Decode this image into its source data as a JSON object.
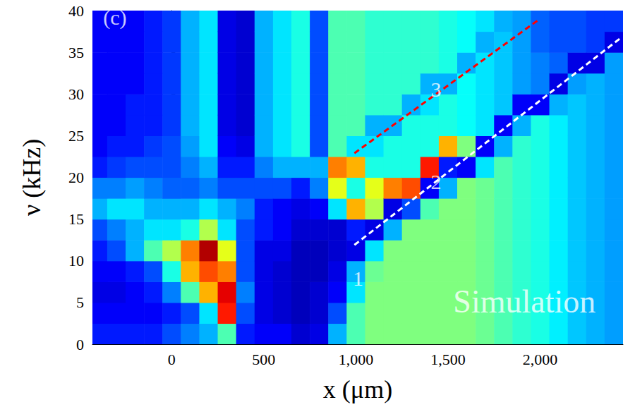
{
  "chart_data": {
    "type": "heatmap",
    "x_label": "x (μm)",
    "y_label": "ν (kHz)",
    "xlim": [
      -430,
      2450
    ],
    "ylim": [
      0,
      40
    ],
    "xticks": [
      0,
      500,
      1000,
      1500,
      2000
    ],
    "yticks": [
      0,
      5,
      10,
      15,
      20,
      25,
      30,
      35,
      40
    ],
    "grid": false,
    "x": [
      -400,
      -300,
      -200,
      -100,
      0,
      100,
      200,
      300,
      400,
      500,
      600,
      700,
      800,
      900,
      1000,
      1100,
      1200,
      1300,
      1400,
      1500,
      1600,
      1700,
      1800,
      1900,
      2000,
      2100,
      2200,
      2300,
      2400
    ],
    "y": [
      1.25,
      3.75,
      6.25,
      8.75,
      11.25,
      13.75,
      16.25,
      18.75,
      21.25,
      23.75,
      26.25,
      28.75,
      31.25,
      33.75,
      36.25,
      38.75
    ],
    "value_range": [
      0,
      1
    ],
    "cells": [
      [
        0.15,
        0.12,
        0.1,
        0.12,
        0.15,
        0.2,
        0.3,
        0.25,
        0.15,
        0.12,
        0.12,
        0.12,
        0.12,
        0.12,
        0.12,
        0.12
      ],
      [
        0.15,
        0.12,
        0.1,
        0.12,
        0.2,
        0.25,
        0.35,
        0.25,
        0.18,
        0.15,
        0.12,
        0.12,
        0.12,
        0.12,
        0.12,
        0.12
      ],
      [
        0.15,
        0.12,
        0.12,
        0.15,
        0.3,
        0.3,
        0.35,
        0.28,
        0.2,
        0.15,
        0.15,
        0.15,
        0.12,
        0.12,
        0.12,
        0.12
      ],
      [
        0.15,
        0.12,
        0.15,
        0.2,
        0.45,
        0.35,
        0.3,
        0.25,
        0.2,
        0.18,
        0.15,
        0.15,
        0.15,
        0.15,
        0.15,
        0.15
      ],
      [
        0.2,
        0.15,
        0.25,
        0.4,
        0.55,
        0.35,
        0.3,
        0.22,
        0.2,
        0.2,
        0.18,
        0.18,
        0.18,
        0.18,
        0.18,
        0.18
      ],
      [
        0.25,
        0.2,
        0.45,
        0.7,
        0.75,
        0.4,
        0.3,
        0.22,
        0.25,
        0.28,
        0.3,
        0.3,
        0.3,
        0.3,
        0.3,
        0.3
      ],
      [
        0.3,
        0.35,
        0.7,
        0.8,
        0.95,
        0.55,
        0.35,
        0.25,
        0.3,
        0.35,
        0.35,
        0.35,
        0.35,
        0.35,
        0.35,
        0.35
      ],
      [
        0.45,
        0.85,
        0.9,
        0.75,
        0.6,
        0.35,
        0.3,
        0.2,
        0.15,
        0.12,
        0.1,
        0.1,
        0.1,
        0.1,
        0.1,
        0.1
      ],
      [
        0.15,
        0.2,
        0.25,
        0.2,
        0.2,
        0.2,
        0.25,
        0.2,
        0.15,
        0.1,
        0.08,
        0.08,
        0.08,
        0.08,
        0.08,
        0.08
      ],
      [
        0.12,
        0.1,
        0.1,
        0.1,
        0.1,
        0.15,
        0.15,
        0.2,
        0.25,
        0.3,
        0.3,
        0.3,
        0.3,
        0.3,
        0.3,
        0.3
      ],
      [
        0.12,
        0.08,
        0.08,
        0.08,
        0.1,
        0.12,
        0.12,
        0.2,
        0.3,
        0.35,
        0.35,
        0.35,
        0.35,
        0.35,
        0.35,
        0.35
      ],
      [
        0.08,
        0.06,
        0.06,
        0.06,
        0.06,
        0.08,
        0.1,
        0.15,
        0.3,
        0.4,
        0.4,
        0.4,
        0.4,
        0.4,
        0.4,
        0.4
      ],
      [
        0.1,
        0.08,
        0.08,
        0.06,
        0.06,
        0.08,
        0.12,
        0.25,
        0.3,
        0.2,
        0.2,
        0.2,
        0.2,
        0.2,
        0.2,
        0.2
      ],
      [
        0.3,
        0.2,
        0.12,
        0.1,
        0.08,
        0.08,
        0.35,
        0.6,
        0.75,
        0.45,
        0.45,
        0.45,
        0.45,
        0.45,
        0.45,
        0.45
      ],
      [
        0.45,
        0.45,
        0.35,
        0.3,
        0.1,
        0.15,
        0.7,
        0.4,
        0.7,
        0.35,
        0.45,
        0.45,
        0.45,
        0.45,
        0.45,
        0.45
      ],
      [
        0.5,
        0.5,
        0.5,
        0.48,
        0.35,
        0.1,
        0.55,
        0.6,
        0.4,
        0.35,
        0.3,
        0.42,
        0.42,
        0.42,
        0.42,
        0.42
      ],
      [
        0.5,
        0.5,
        0.5,
        0.5,
        0.5,
        0.3,
        0.1,
        0.75,
        0.4,
        0.4,
        0.3,
        0.42,
        0.42,
        0.42,
        0.42,
        0.42
      ],
      [
        0.5,
        0.5,
        0.5,
        0.5,
        0.5,
        0.5,
        0.2,
        0.8,
        0.4,
        0.4,
        0.4,
        0.3,
        0.42,
        0.42,
        0.42,
        0.42
      ],
      [
        0.5,
        0.5,
        0.5,
        0.5,
        0.5,
        0.5,
        0.45,
        0.12,
        0.85,
        0.4,
        0.4,
        0.35,
        0.3,
        0.42,
        0.42,
        0.42
      ],
      [
        0.5,
        0.5,
        0.5,
        0.5,
        0.5,
        0.5,
        0.5,
        0.3,
        0.15,
        0.7,
        0.4,
        0.4,
        0.3,
        0.4,
        0.4,
        0.4
      ],
      [
        0.5,
        0.5,
        0.5,
        0.5,
        0.5,
        0.5,
        0.5,
        0.5,
        0.12,
        0.5,
        0.38,
        0.38,
        0.38,
        0.3,
        0.38,
        0.38
      ],
      [
        0.48,
        0.48,
        0.48,
        0.48,
        0.48,
        0.48,
        0.48,
        0.48,
        0.35,
        0.12,
        0.35,
        0.35,
        0.35,
        0.35,
        0.3,
        0.35
      ],
      [
        0.45,
        0.45,
        0.45,
        0.45,
        0.45,
        0.45,
        0.45,
        0.45,
        0.45,
        0.3,
        0.12,
        0.32,
        0.32,
        0.32,
        0.32,
        0.3
      ],
      [
        0.42,
        0.42,
        0.42,
        0.42,
        0.42,
        0.42,
        0.42,
        0.42,
        0.42,
        0.42,
        0.3,
        0.12,
        0.28,
        0.28,
        0.28,
        0.28
      ],
      [
        0.4,
        0.4,
        0.4,
        0.4,
        0.4,
        0.4,
        0.4,
        0.4,
        0.4,
        0.4,
        0.4,
        0.12,
        0.25,
        0.25,
        0.22,
        0.22
      ],
      [
        0.36,
        0.36,
        0.36,
        0.36,
        0.36,
        0.36,
        0.36,
        0.36,
        0.36,
        0.36,
        0.36,
        0.3,
        0.1,
        0.22,
        0.2,
        0.2
      ],
      [
        0.32,
        0.32,
        0.32,
        0.32,
        0.32,
        0.32,
        0.32,
        0.32,
        0.32,
        0.32,
        0.32,
        0.32,
        0.28,
        0.1,
        0.2,
        0.2
      ],
      [
        0.3,
        0.3,
        0.3,
        0.3,
        0.3,
        0.3,
        0.3,
        0.3,
        0.3,
        0.3,
        0.3,
        0.3,
        0.3,
        0.1,
        0.18,
        0.18
      ],
      [
        0.28,
        0.28,
        0.28,
        0.28,
        0.28,
        0.28,
        0.28,
        0.28,
        0.28,
        0.28,
        0.28,
        0.28,
        0.28,
        0.28,
        0.1,
        0.18
      ]
    ],
    "lines": [
      {
        "x": [
          992,
          1992
        ],
        "y": [
          22.9,
          38.9
        ],
        "color": "#ff0000",
        "line_style": "dashed"
      },
      {
        "x": [
          992,
          2442
        ],
        "y": [
          11.9,
          36.8
        ],
        "color": "#ffffff",
        "line_style": "dashed"
      }
    ],
    "annotations": [
      {
        "text": "(c)",
        "x": -308,
        "y": 39.2
      },
      {
        "text": "1",
        "x": 1012,
        "y": 7.9
      },
      {
        "text": "2",
        "x": 1435,
        "y": 19.5
      },
      {
        "text": "3",
        "x": 1435,
        "y": 30.6
      },
      {
        "text": "Simulation",
        "x": 1915,
        "y": 5.1
      }
    ]
  }
}
